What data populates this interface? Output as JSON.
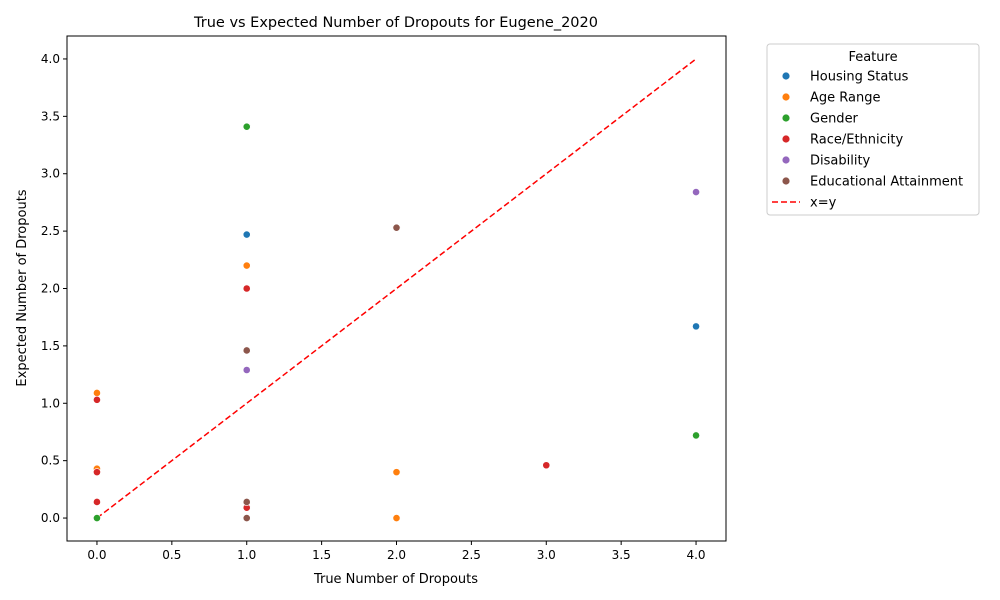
{
  "chart_data": {
    "type": "scatter",
    "title": "True vs Expected Number of Dropouts for Eugene_2020",
    "xlabel": "True Number of Dropouts",
    "ylabel": "Expected Number of Dropouts",
    "xlim": [
      -0.2,
      4.2
    ],
    "ylim": [
      -0.2,
      4.2
    ],
    "xticks": [
      0.0,
      0.5,
      1.0,
      1.5,
      2.0,
      2.5,
      3.0,
      3.5,
      4.0
    ],
    "yticks": [
      0.0,
      0.5,
      1.0,
      1.5,
      2.0,
      2.5,
      3.0,
      3.5,
      4.0
    ],
    "grid": false,
    "legend": {
      "title": "Feature",
      "placement": "outside upper right"
    },
    "series": [
      {
        "name": "Housing Status",
        "color": "#1f77b4",
        "points": [
          [
            1,
            2.47
          ],
          [
            4,
            1.67
          ]
        ]
      },
      {
        "name": "Age Range",
        "color": "#ff7f0e",
        "points": [
          [
            1,
            2.2
          ],
          [
            0,
            1.09
          ],
          [
            0,
            0.43
          ],
          [
            2,
            0.4
          ],
          [
            2,
            0.0
          ]
        ]
      },
      {
        "name": "Gender",
        "color": "#2ca02c",
        "points": [
          [
            1,
            3.41
          ],
          [
            4,
            0.72
          ],
          [
            0,
            0.0
          ]
        ]
      },
      {
        "name": "Race/Ethnicity",
        "color": "#d62728",
        "points": [
          [
            1,
            2.0
          ],
          [
            0,
            1.03
          ],
          [
            0,
            0.4
          ],
          [
            3,
            0.46
          ],
          [
            0,
            0.14
          ],
          [
            1,
            0.09
          ]
        ]
      },
      {
        "name": "Disability",
        "color": "#9467bd",
        "points": [
          [
            4,
            2.84
          ],
          [
            1,
            1.29
          ]
        ]
      },
      {
        "name": "Educational Attainment",
        "color": "#8c564b",
        "points": [
          [
            2,
            2.53
          ],
          [
            1,
            1.46
          ],
          [
            1,
            0.14
          ],
          [
            1,
            0.0
          ]
        ]
      }
    ],
    "reference_line": {
      "name": "x=y",
      "color": "#ff0000",
      "style": "dashed",
      "from": [
        0,
        0
      ],
      "to": [
        4,
        4
      ]
    }
  }
}
